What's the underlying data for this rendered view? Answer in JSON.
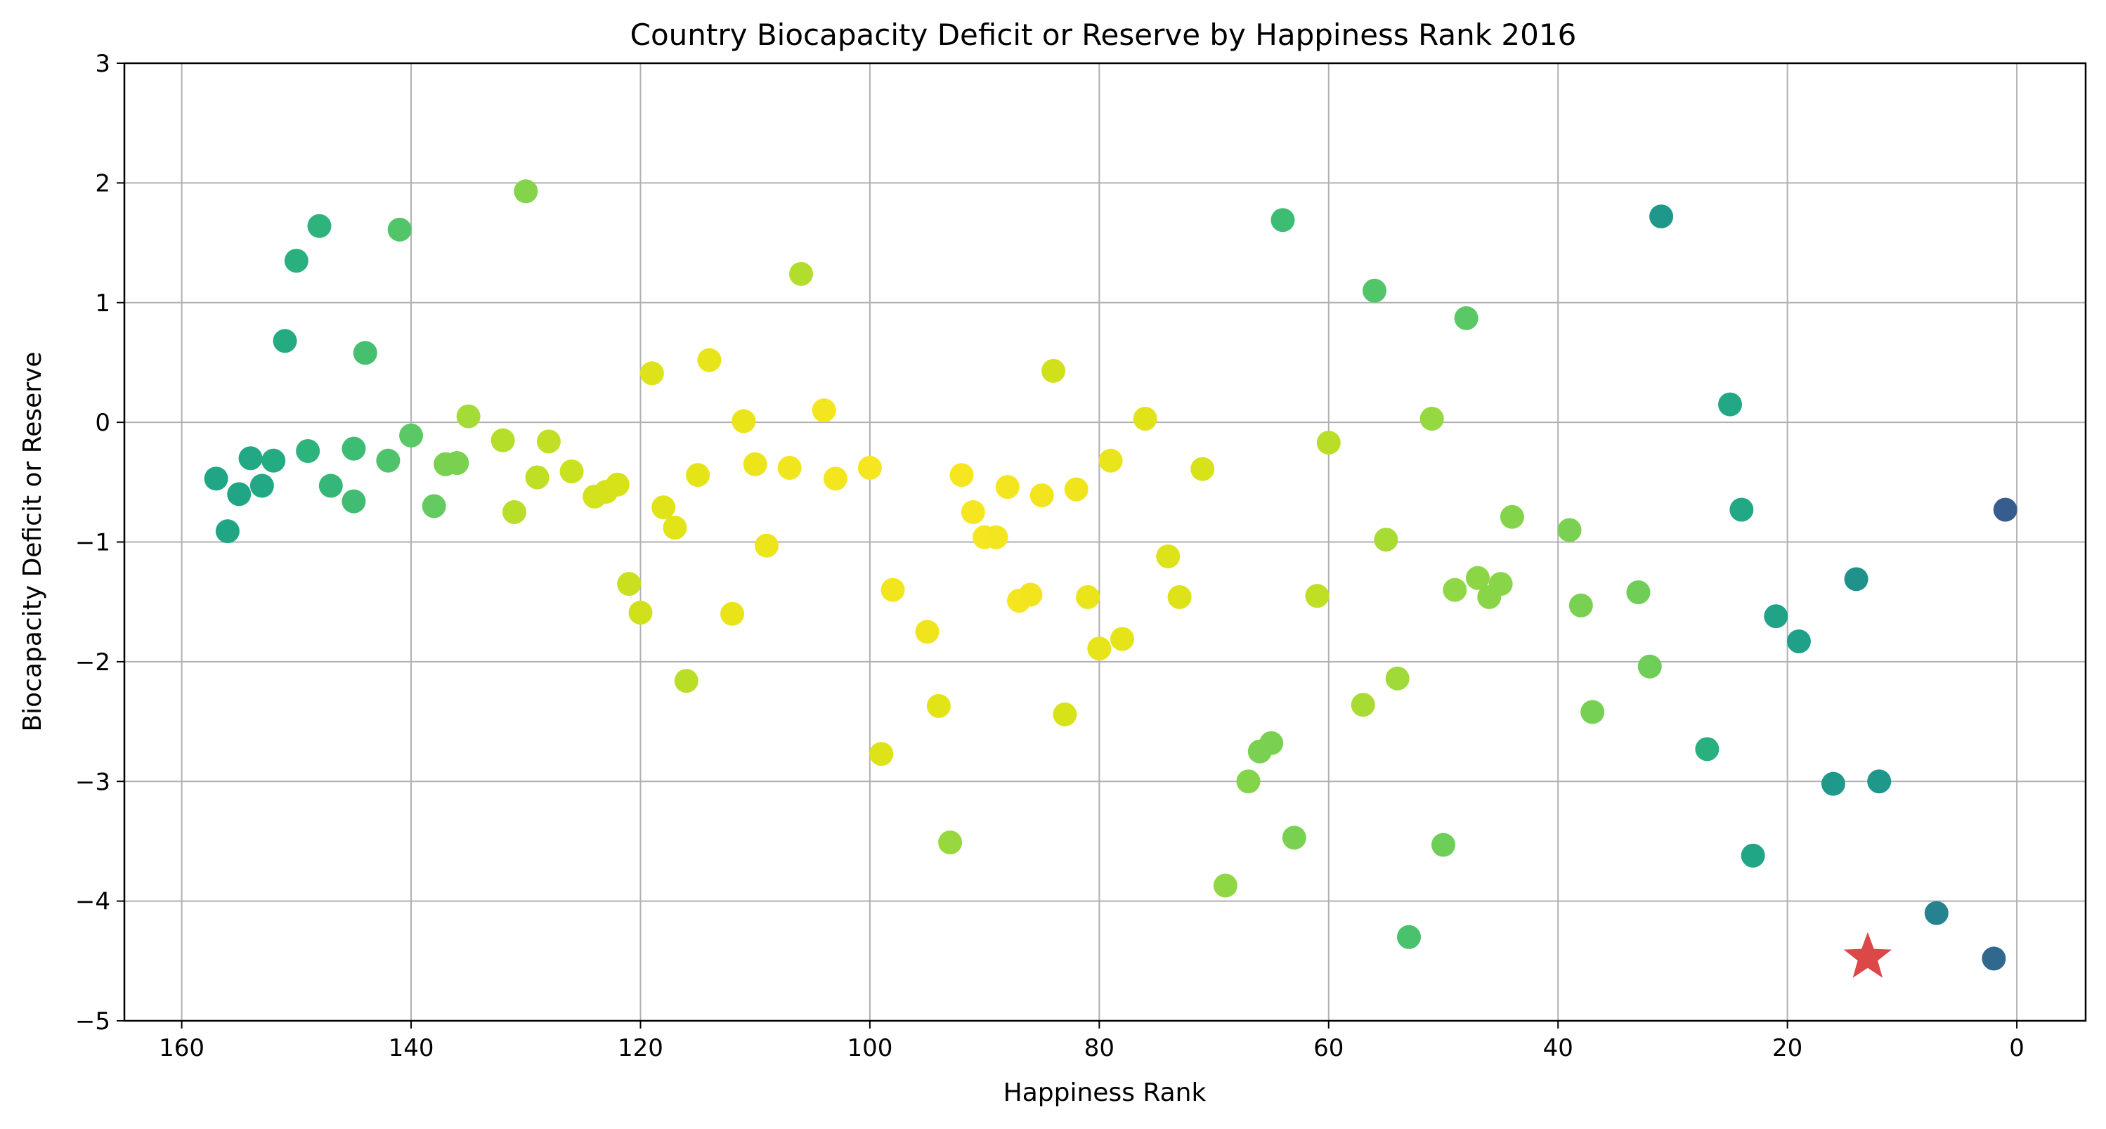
{
  "chart_data": {
    "type": "scatter",
    "title": "Country Biocapacity Deficit or Reserve by Happiness Rank 2016",
    "xlabel": "Happiness Rank",
    "ylabel": "Biocapacity Deficit or Reserve",
    "xlim": [
      165,
      -6
    ],
    "ylim": [
      -5,
      3
    ],
    "x_inverted": true,
    "grid": true,
    "xticks": [
      160,
      140,
      120,
      100,
      80,
      60,
      40,
      20,
      0
    ],
    "xtick_labels": [
      "160",
      "140",
      "120",
      "100",
      "80",
      "60",
      "40",
      "20",
      "0"
    ],
    "yticks": [
      3,
      2,
      1,
      0,
      -1,
      -2,
      -3,
      -4,
      -5
    ],
    "ytick_labels": [
      "3",
      "2",
      "1",
      "0",
      "−1",
      "−2",
      "−3",
      "−4",
      "−5"
    ],
    "colormap": "viridis-like, colored by happiness rank",
    "highlight": {
      "x": 13,
      "y": -4.47,
      "marker": "star",
      "color": "#d62728"
    },
    "points": [
      {
        "x": 157,
        "y": -0.47,
        "color": "#21a685"
      },
      {
        "x": 156,
        "y": -0.91,
        "color": "#21a685"
      },
      {
        "x": 155,
        "y": -0.6,
        "color": "#21a685"
      },
      {
        "x": 154,
        "y": -0.3,
        "color": "#22a884"
      },
      {
        "x": 153,
        "y": -0.53,
        "color": "#22a884"
      },
      {
        "x": 152,
        "y": -0.32,
        "color": "#25ab82"
      },
      {
        "x": 151,
        "y": 0.68,
        "color": "#25ab82"
      },
      {
        "x": 150,
        "y": 1.35,
        "color": "#2ab07f"
      },
      {
        "x": 149,
        "y": -0.24,
        "color": "#2eb37c"
      },
      {
        "x": 148,
        "y": 1.64,
        "color": "#2eb37c"
      },
      {
        "x": 147,
        "y": -0.53,
        "color": "#35b779"
      },
      {
        "x": 145,
        "y": -0.22,
        "color": "#3dbc74"
      },
      {
        "x": 145,
        "y": -0.66,
        "color": "#40bd72"
      },
      {
        "x": 144,
        "y": 0.58,
        "color": "#46c06f"
      },
      {
        "x": 142,
        "y": -0.32,
        "color": "#4ec36b"
      },
      {
        "x": 141,
        "y": 1.61,
        "color": "#52c569"
      },
      {
        "x": 140,
        "y": -0.11,
        "color": "#5ac864"
      },
      {
        "x": 138,
        "y": -0.7,
        "color": "#63cb5f"
      },
      {
        "x": 137,
        "y": -0.35,
        "color": "#7ad151"
      },
      {
        "x": 136,
        "y": -0.34,
        "color": "#7ad151"
      },
      {
        "x": 135,
        "y": 0.05,
        "color": "#a5db36"
      },
      {
        "x": 132,
        "y": -0.15,
        "color": "#b5de2b"
      },
      {
        "x": 131,
        "y": -0.75,
        "color": "#b8de29"
      },
      {
        "x": 130,
        "y": 1.93,
        "color": "#84d44b"
      },
      {
        "x": 129,
        "y": -0.46,
        "color": "#bfdf25"
      },
      {
        "x": 128,
        "y": -0.16,
        "color": "#c2df23"
      },
      {
        "x": 126,
        "y": -0.41,
        "color": "#cae11f"
      },
      {
        "x": 124,
        "y": -0.62,
        "color": "#d2e21b"
      },
      {
        "x": 123,
        "y": -0.58,
        "color": "#d5e21a"
      },
      {
        "x": 122,
        "y": -0.52,
        "color": "#d8e219"
      },
      {
        "x": 121,
        "y": -1.35,
        "color": "#c8e020"
      },
      {
        "x": 120,
        "y": -1.59,
        "color": "#d0e11c"
      },
      {
        "x": 119,
        "y": 0.41,
        "color": "#dde318"
      },
      {
        "x": 118,
        "y": -0.71,
        "color": "#e0e318"
      },
      {
        "x": 117,
        "y": -0.88,
        "color": "#e2e418"
      },
      {
        "x": 116,
        "y": -2.16,
        "color": "#bade28"
      },
      {
        "x": 115,
        "y": -0.44,
        "color": "#e5e419"
      },
      {
        "x": 114,
        "y": 0.52,
        "color": "#e7e419"
      },
      {
        "x": 112,
        "y": -1.6,
        "color": "#e8e419"
      },
      {
        "x": 111,
        "y": 0.01,
        "color": "#eae51a"
      },
      {
        "x": 110,
        "y": -0.35,
        "color": "#ece51b"
      },
      {
        "x": 109,
        "y": -1.03,
        "color": "#ede51b"
      },
      {
        "x": 107,
        "y": -0.38,
        "color": "#f1e51d"
      },
      {
        "x": 106,
        "y": 1.24,
        "color": "#b2dd2d"
      },
      {
        "x": 104,
        "y": 0.1,
        "color": "#f4e61e"
      },
      {
        "x": 103,
        "y": -0.47,
        "color": "#f4e61e"
      },
      {
        "x": 100,
        "y": -0.38,
        "color": "#f6e620"
      },
      {
        "x": 99,
        "y": -2.77,
        "color": "#dde318"
      },
      {
        "x": 98,
        "y": -1.4,
        "color": "#f2e51d"
      },
      {
        "x": 95,
        "y": -1.75,
        "color": "#f0e51c"
      },
      {
        "x": 94,
        "y": -2.37,
        "color": "#e2e418"
      },
      {
        "x": 93,
        "y": -3.51,
        "color": "#98d83e"
      },
      {
        "x": 92,
        "y": -0.44,
        "color": "#f6e620"
      },
      {
        "x": 91,
        "y": -0.75,
        "color": "#f6e620"
      },
      {
        "x": 90,
        "y": -0.96,
        "color": "#f6e620"
      },
      {
        "x": 89,
        "y": -0.96,
        "color": "#f4e61e"
      },
      {
        "x": 88,
        "y": -0.54,
        "color": "#f4e61e"
      },
      {
        "x": 87,
        "y": -1.49,
        "color": "#f4e61e"
      },
      {
        "x": 86,
        "y": -1.44,
        "color": "#f2e51d"
      },
      {
        "x": 85,
        "y": -0.61,
        "color": "#f2e51d"
      },
      {
        "x": 84,
        "y": 0.43,
        "color": "#d0e11c"
      },
      {
        "x": 83,
        "y": -2.44,
        "color": "#d8e219"
      },
      {
        "x": 82,
        "y": -0.56,
        "color": "#f0e51c"
      },
      {
        "x": 81,
        "y": -1.46,
        "color": "#eae51a"
      },
      {
        "x": 80,
        "y": -1.89,
        "color": "#e7e419"
      },
      {
        "x": 79,
        "y": -0.32,
        "color": "#eae51a"
      },
      {
        "x": 78,
        "y": -1.81,
        "color": "#e5e419"
      },
      {
        "x": 76,
        "y": 0.03,
        "color": "#e0e318"
      },
      {
        "x": 74,
        "y": -1.12,
        "color": "#dde318"
      },
      {
        "x": 73,
        "y": -1.46,
        "color": "#dde318"
      },
      {
        "x": 71,
        "y": -0.39,
        "color": "#d8e219"
      },
      {
        "x": 69,
        "y": -3.87,
        "color": "#8fd744"
      },
      {
        "x": 67,
        "y": -3.0,
        "color": "#84d44b"
      },
      {
        "x": 66,
        "y": -2.75,
        "color": "#7ad151"
      },
      {
        "x": 65,
        "y": -2.68,
        "color": "#7ad151"
      },
      {
        "x": 64,
        "y": 1.69,
        "color": "#3dbc74"
      },
      {
        "x": 63,
        "y": -3.47,
        "color": "#7ad151"
      },
      {
        "x": 61,
        "y": -1.45,
        "color": "#bfdf25"
      },
      {
        "x": 60,
        "y": -0.17,
        "color": "#bade28"
      },
      {
        "x": 57,
        "y": -2.36,
        "color": "#a8db34"
      },
      {
        "x": 56,
        "y": 1.1,
        "color": "#52c569"
      },
      {
        "x": 55,
        "y": -0.98,
        "color": "#a8db34"
      },
      {
        "x": 54,
        "y": -2.14,
        "color": "#a0da39"
      },
      {
        "x": 53,
        "y": -4.3,
        "color": "#4ac16d"
      },
      {
        "x": 51,
        "y": 0.03,
        "color": "#95d840"
      },
      {
        "x": 50,
        "y": -3.53,
        "color": "#6ece58"
      },
      {
        "x": 49,
        "y": -1.4,
        "color": "#8fd744"
      },
      {
        "x": 48,
        "y": 0.87,
        "color": "#5ac864"
      },
      {
        "x": 47,
        "y": -1.3,
        "color": "#8cd646"
      },
      {
        "x": 46,
        "y": -1.46,
        "color": "#89d548"
      },
      {
        "x": 45,
        "y": -1.35,
        "color": "#89d548"
      },
      {
        "x": 44,
        "y": -0.79,
        "color": "#84d44b"
      },
      {
        "x": 39,
        "y": -0.9,
        "color": "#7ad151"
      },
      {
        "x": 38,
        "y": -1.53,
        "color": "#7ad151"
      },
      {
        "x": 37,
        "y": -2.42,
        "color": "#75d054"
      },
      {
        "x": 33,
        "y": -1.42,
        "color": "#6ece58"
      },
      {
        "x": 32,
        "y": -2.04,
        "color": "#6ece58"
      },
      {
        "x": 31,
        "y": 1.72,
        "color": "#1f988b"
      },
      {
        "x": 27,
        "y": -2.73,
        "color": "#2ab07f"
      },
      {
        "x": 25,
        "y": 0.15,
        "color": "#22a884"
      },
      {
        "x": 24,
        "y": -0.73,
        "color": "#22a884"
      },
      {
        "x": 23,
        "y": -3.62,
        "color": "#21a685"
      },
      {
        "x": 21,
        "y": -1.62,
        "color": "#20a386"
      },
      {
        "x": 19,
        "y": -1.83,
        "color": "#1fa088"
      },
      {
        "x": 16,
        "y": -3.02,
        "color": "#1f9a8a"
      },
      {
        "x": 14,
        "y": -1.31,
        "color": "#21918c"
      },
      {
        "x": 12,
        "y": -3.0,
        "color": "#1f978b"
      },
      {
        "x": 7,
        "y": -4.1,
        "color": "#26828e"
      },
      {
        "x": 2,
        "y": -4.48,
        "color": "#31688e"
      },
      {
        "x": 1,
        "y": -0.73,
        "color": "#365d8d"
      }
    ]
  }
}
